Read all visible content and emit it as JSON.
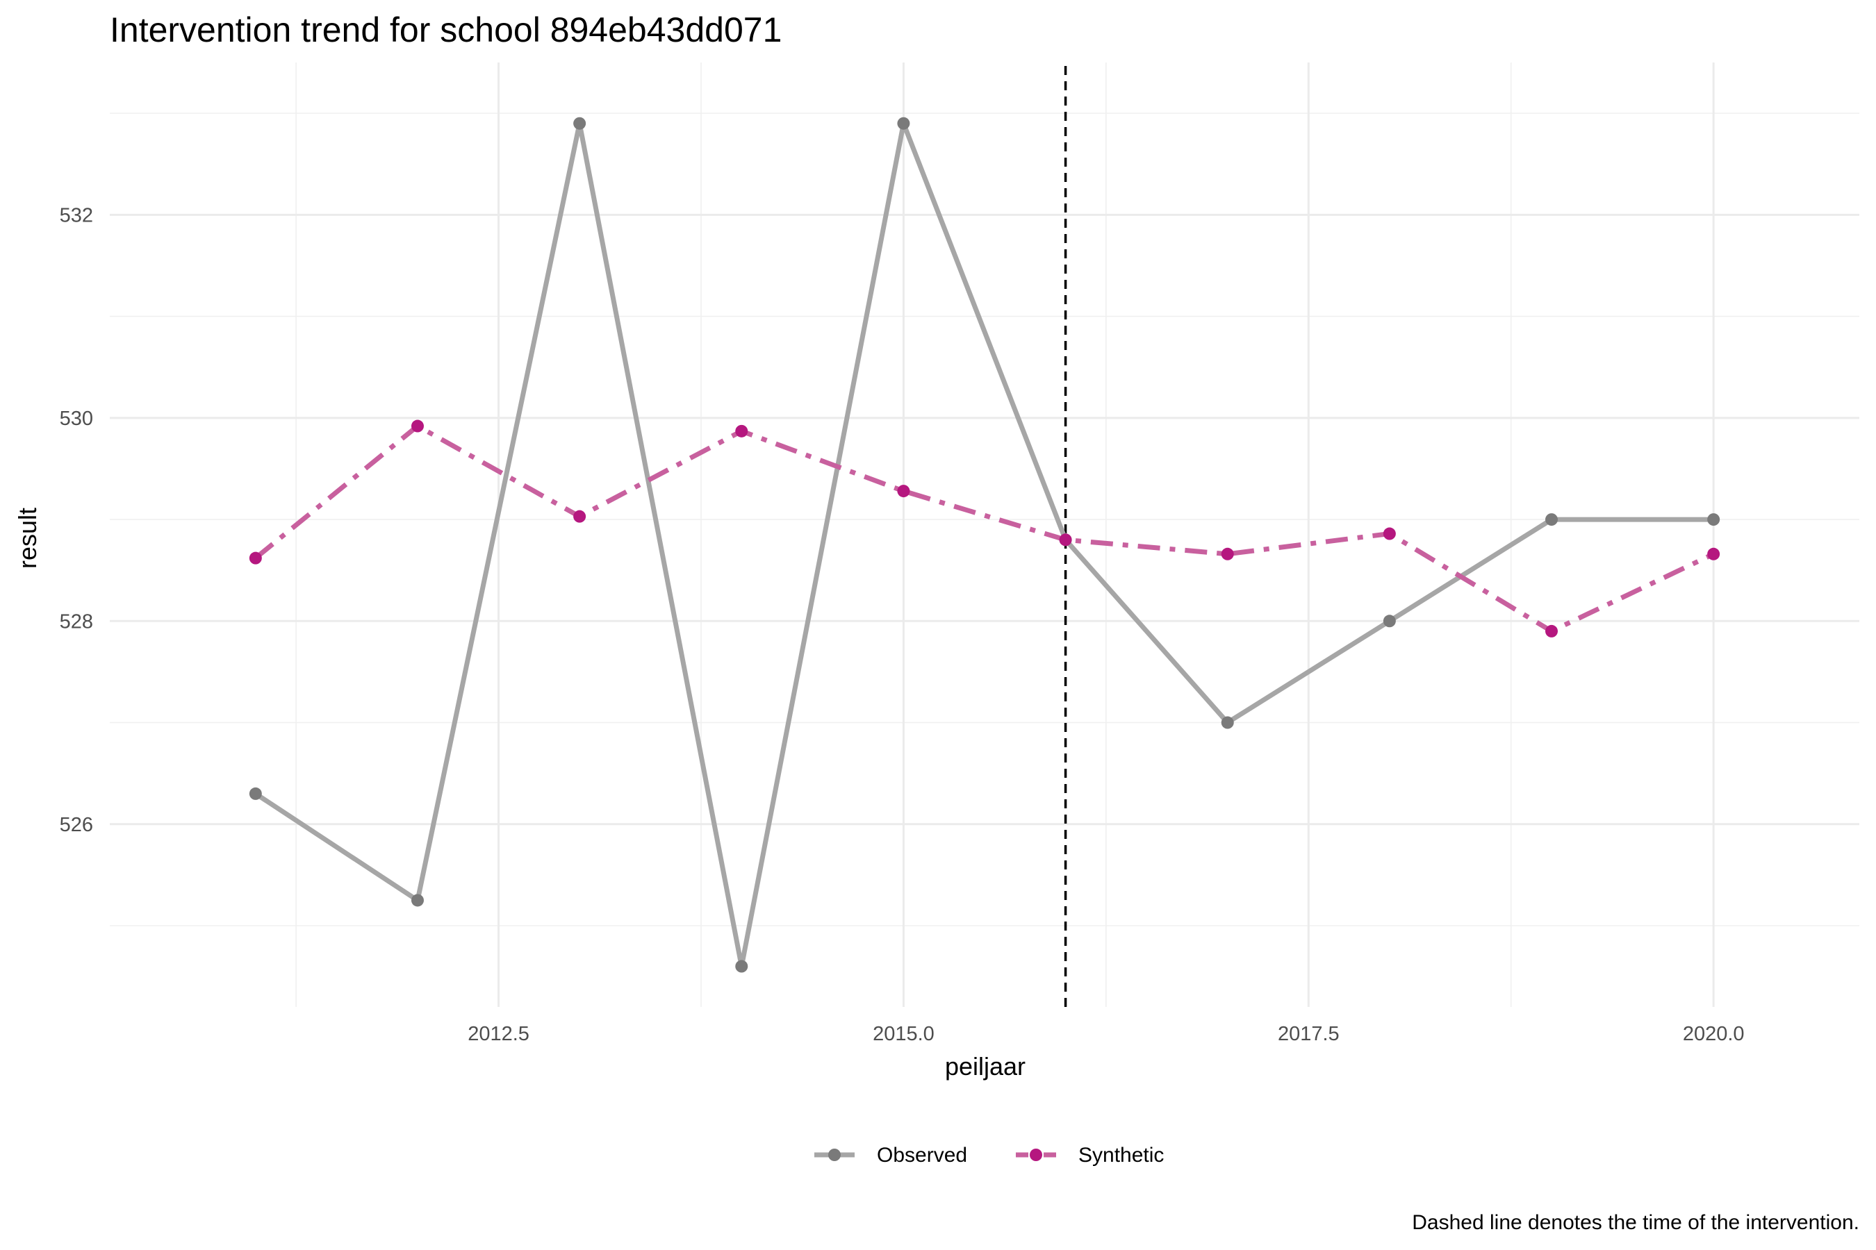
{
  "chart_data": {
    "type": "line",
    "title": "Intervention trend for school 894eb43dd071",
    "xlabel": "peiljaar",
    "ylabel": "result",
    "caption": "Dashed line denotes the time of the intervention.",
    "x": [
      2011,
      2012,
      2013,
      2014,
      2015,
      2016,
      2017,
      2018,
      2019,
      2020
    ],
    "xlim": [
      2010.1,
      2020.9
    ],
    "ylim": [
      524.2,
      533.5
    ],
    "x_ticks": [
      2012.5,
      2015.0,
      2017.5,
      2020.0
    ],
    "x_tick_labels": [
      "2012.5",
      "2015.0",
      "2017.5",
      "2020.0"
    ],
    "y_ticks": [
      526,
      528,
      530,
      532
    ],
    "y_tick_labels": [
      "526",
      "528",
      "530",
      "532"
    ],
    "intervention_x": 2016,
    "grid": true,
    "legend_position": "bottom",
    "series": [
      {
        "name": "Observed",
        "color": "#a6a6a6",
        "point_color": "#7a7a7a",
        "line_style": "solid",
        "values": [
          526.3,
          525.25,
          532.9,
          524.6,
          532.9,
          528.8,
          527.0,
          528.0,
          529.0,
          529.0
        ]
      },
      {
        "name": "Synthetic",
        "color": "#c8609e",
        "point_color": "#b5177f",
        "line_style": "dashdot",
        "values": [
          528.62,
          529.92,
          529.03,
          529.87,
          529.28,
          528.8,
          528.66,
          528.86,
          527.9,
          528.66
        ]
      }
    ]
  }
}
